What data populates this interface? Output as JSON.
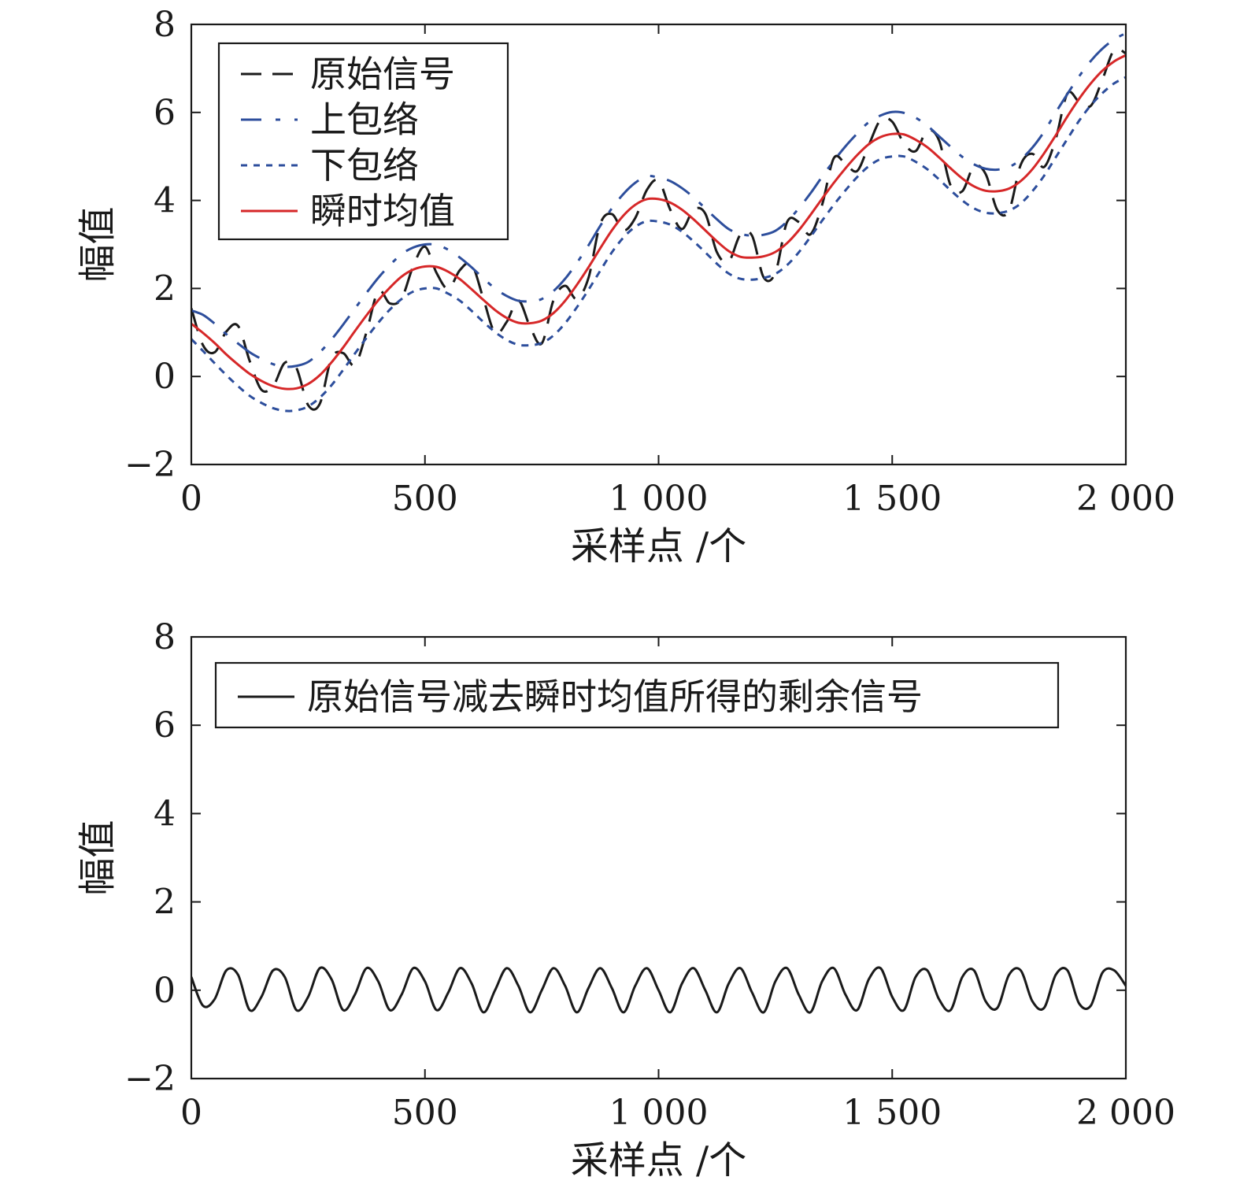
{
  "chart_data": [
    {
      "type": "line",
      "xlabel": "采样点 /个",
      "ylabel": "幅值",
      "xlim": [
        0,
        2000
      ],
      "ylim": [
        -2,
        8
      ],
      "xticks": [
        0,
        500,
        1000,
        1500,
        2000
      ],
      "xtick_labels": [
        "0",
        "500",
        "1 000",
        "1 500",
        "2 000"
      ],
      "yticks": [
        -2,
        0,
        2,
        4,
        6,
        8
      ],
      "ytick_labels": [
        "−2",
        "0",
        "2",
        "4",
        "6",
        "8"
      ],
      "grid": false,
      "legend_position": "top-left",
      "series": [
        {
          "name": "原始信号",
          "color": "#1a1a1a",
          "style": "dashed-long",
          "x": [
            0,
            25,
            50,
            75,
            100,
            125,
            150,
            175,
            200,
            225,
            250,
            275,
            300,
            325,
            350,
            375,
            400,
            425,
            450,
            475,
            500,
            525,
            550,
            575,
            600,
            625,
            650,
            675,
            700,
            725,
            750,
            775,
            800,
            825,
            850,
            875,
            900,
            925,
            950,
            975,
            1000,
            1025,
            1050,
            1075,
            1100,
            1125,
            1150,
            1175,
            1200,
            1225,
            1250,
            1275,
            1300,
            1325,
            1350,
            1375,
            1400,
            1425,
            1450,
            1475,
            1500,
            1525,
            1550,
            1575,
            1600,
            1625,
            1650,
            1675,
            1700,
            1725,
            1750,
            1775,
            1800,
            1825,
            1850,
            1875,
            1900,
            1925,
            1950,
            1975,
            2000
          ],
          "y": [
            1.55,
            0.71,
            0.55,
            1.02,
            1.15,
            0.35,
            -0.3,
            -0.22,
            0.31,
            0.19,
            -0.65,
            -0.62,
            0.42,
            0.53,
            0.26,
            1.01,
            1.94,
            1.66,
            1.77,
            2.51,
            2.95,
            2.35,
            1.99,
            2.42,
            2.55,
            1.77,
            0.99,
            1.24,
            1.73,
            1.13,
            0.75,
            1.73,
            2.06,
            1.76,
            2.24,
            3.46,
            3.69,
            3.32,
            3.6,
            4.24,
            4.45,
            3.79,
            3.35,
            3.79,
            3.7,
            2.82,
            2.61,
            3.22,
            3.2,
            2.25,
            2.36,
            3.51,
            3.51,
            3.23,
            3.9,
            4.96,
            4.83,
            4.67,
            5.26,
            5.83,
            5.79,
            5.3,
            5.12,
            5.59,
            5.37,
            4.34,
            4.21,
            4.78,
            4.6,
            3.78,
            3.77,
            4.81,
            5.06,
            4.76,
            5.4,
            6.43,
            6.24,
            6.15,
            6.75,
            7.42,
            7.34
          ]
        },
        {
          "name": "上包络",
          "color": "#2d4e9c",
          "style": "dash-dot",
          "x": [
            0,
            25,
            50,
            75,
            100,
            125,
            150,
            175,
            200,
            225,
            250,
            275,
            300,
            325,
            350,
            375,
            400,
            425,
            450,
            475,
            500,
            525,
            550,
            575,
            600,
            625,
            650,
            675,
            700,
            725,
            750,
            775,
            800,
            825,
            850,
            875,
            900,
            925,
            950,
            975,
            1000,
            1025,
            1050,
            1075,
            1100,
            1125,
            1150,
            1175,
            1200,
            1225,
            1250,
            1275,
            1300,
            1325,
            1350,
            1375,
            1400,
            1425,
            1450,
            1475,
            1500,
            1525,
            1550,
            1575,
            1600,
            1625,
            1650,
            1675,
            1700,
            1725,
            1750,
            1775,
            1800,
            1825,
            1850,
            1875,
            1900,
            1925,
            1950,
            1975,
            2000
          ],
          "y": [
            1.5,
            1.4,
            1.2,
            0.96,
            0.75,
            0.55,
            0.4,
            0.28,
            0.22,
            0.24,
            0.33,
            0.55,
            0.84,
            1.18,
            1.54,
            1.9,
            2.24,
            2.53,
            2.78,
            2.93,
            3.0,
            2.99,
            2.88,
            2.7,
            2.48,
            2.23,
            2.0,
            1.83,
            1.72,
            1.71,
            1.76,
            1.94,
            2.22,
            2.58,
            2.98,
            3.42,
            3.82,
            4.15,
            4.4,
            4.55,
            4.52,
            4.44,
            4.28,
            4.07,
            3.82,
            3.57,
            3.35,
            3.24,
            3.2,
            3.22,
            3.31,
            3.52,
            3.82,
            4.16,
            4.54,
            4.9,
            5.23,
            5.52,
            5.78,
            5.93,
            6.01,
            5.99,
            5.88,
            5.7,
            5.46,
            5.22,
            4.99,
            4.82,
            4.72,
            4.7,
            4.76,
            4.93,
            5.2,
            5.56,
            6.0,
            6.42,
            6.82,
            7.17,
            7.45,
            7.66,
            7.8
          ]
        },
        {
          "name": "下包络",
          "color": "#2d4e9c",
          "style": "dotted",
          "x": [
            0,
            25,
            50,
            75,
            100,
            125,
            150,
            175,
            200,
            225,
            250,
            275,
            300,
            325,
            350,
            375,
            400,
            425,
            450,
            475,
            500,
            525,
            550,
            575,
            600,
            625,
            650,
            675,
            700,
            725,
            750,
            775,
            800,
            825,
            850,
            875,
            900,
            925,
            950,
            975,
            1000,
            1025,
            1050,
            1075,
            1100,
            1125,
            1150,
            1175,
            1200,
            1225,
            1250,
            1275,
            1300,
            1325,
            1350,
            1375,
            1400,
            1425,
            1450,
            1475,
            1500,
            1525,
            1550,
            1575,
            1600,
            1625,
            1650,
            1675,
            1700,
            1725,
            1750,
            1775,
            1800,
            1825,
            1850,
            1875,
            1900,
            1925,
            1950,
            1975,
            2000
          ],
          "y": [
            0.85,
            0.58,
            0.3,
            0.03,
            -0.22,
            -0.44,
            -0.6,
            -0.72,
            -0.78,
            -0.77,
            -0.68,
            -0.48,
            -0.2,
            0.15,
            0.52,
            0.88,
            1.22,
            1.52,
            1.76,
            1.93,
            2.0,
            2.0,
            1.88,
            1.72,
            1.49,
            1.24,
            1.01,
            0.83,
            0.72,
            0.71,
            0.76,
            0.93,
            1.21,
            1.57,
            1.97,
            2.4,
            2.82,
            3.16,
            3.4,
            3.53,
            3.52,
            3.45,
            3.29,
            3.07,
            2.82,
            2.56,
            2.34,
            2.22,
            2.2,
            2.24,
            2.33,
            2.53,
            2.82,
            3.17,
            3.54,
            3.9,
            4.23,
            4.53,
            4.78,
            4.94,
            5.0,
            5.0,
            4.88,
            4.71,
            4.48,
            4.23,
            4.0,
            3.82,
            3.72,
            3.71,
            3.77,
            3.93,
            4.21,
            4.56,
            4.98,
            5.4,
            5.81,
            6.16,
            6.44,
            6.66,
            6.8
          ]
        },
        {
          "name": "瞬时均值",
          "color": "#d62728",
          "style": "solid",
          "x": [
            0,
            25,
            50,
            75,
            100,
            125,
            150,
            175,
            200,
            225,
            250,
            275,
            300,
            325,
            350,
            375,
            400,
            425,
            450,
            475,
            500,
            525,
            550,
            575,
            600,
            625,
            650,
            675,
            700,
            725,
            750,
            775,
            800,
            825,
            850,
            875,
            900,
            925,
            950,
            975,
            1000,
            1025,
            1050,
            1075,
            1100,
            1125,
            1150,
            1175,
            1200,
            1225,
            1250,
            1275,
            1300,
            1325,
            1350,
            1375,
            1400,
            1425,
            1450,
            1475,
            1500,
            1525,
            1550,
            1575,
            1600,
            1625,
            1650,
            1675,
            1700,
            1725,
            1750,
            1775,
            1800,
            1825,
            1850,
            1875,
            1900,
            1925,
            1950,
            1975,
            2000
          ],
          "y": [
            1.2,
            0.99,
            0.76,
            0.5,
            0.27,
            0.06,
            -0.1,
            -0.22,
            -0.28,
            -0.27,
            -0.17,
            0.03,
            0.32,
            0.66,
            1.03,
            1.39,
            1.73,
            2.02,
            2.27,
            2.43,
            2.5,
            2.49,
            2.38,
            2.21,
            1.98,
            1.74,
            1.51,
            1.33,
            1.22,
            1.21,
            1.27,
            1.44,
            1.72,
            2.08,
            2.48,
            2.91,
            3.32,
            3.66,
            3.9,
            4.03,
            4.03,
            3.95,
            3.79,
            3.57,
            3.32,
            3.07,
            2.85,
            2.72,
            2.7,
            2.73,
            2.83,
            3.03,
            3.32,
            3.67,
            4.04,
            4.4,
            4.73,
            5.03,
            5.28,
            5.44,
            5.51,
            5.5,
            5.38,
            5.21,
            4.98,
            4.73,
            4.5,
            4.32,
            4.22,
            4.21,
            4.27,
            4.44,
            4.71,
            5.07,
            5.48,
            5.91,
            6.31,
            6.66,
            6.95,
            7.16,
            7.3
          ]
        }
      ]
    },
    {
      "type": "line",
      "xlabel": "采样点 /个",
      "ylabel": "幅值",
      "xlim": [
        0,
        2000
      ],
      "ylim": [
        -2,
        8
      ],
      "xticks": [
        0,
        500,
        1000,
        1500,
        2000
      ],
      "xtick_labels": [
        "0",
        "500",
        "1 000",
        "1 500",
        "2 000"
      ],
      "yticks": [
        -2,
        0,
        2,
        4,
        6,
        8
      ],
      "ytick_labels": [
        "−2",
        "0",
        "2",
        "4",
        "6",
        "8"
      ],
      "grid": false,
      "legend_position": "top-left",
      "series": [
        {
          "name": "原始信号减去瞬时均值所得的剩余信号",
          "color": "#1a1a1a",
          "style": "solid",
          "x": [
            0,
            25,
            50,
            75,
            100,
            125,
            150,
            175,
            200,
            225,
            250,
            275,
            300,
            325,
            350,
            375,
            400,
            425,
            450,
            475,
            500,
            525,
            550,
            575,
            600,
            625,
            650,
            675,
            700,
            725,
            750,
            775,
            800,
            825,
            850,
            875,
            900,
            925,
            950,
            975,
            1000,
            1025,
            1050,
            1075,
            1100,
            1125,
            1150,
            1175,
            1200,
            1225,
            1250,
            1275,
            1300,
            1325,
            1350,
            1375,
            1400,
            1425,
            1450,
            1475,
            1500,
            1525,
            1550,
            1575,
            1600,
            1625,
            1650,
            1675,
            1700,
            1725,
            1750,
            1775,
            1800,
            1825,
            1850,
            1875,
            1900,
            1925,
            1950,
            1975,
            2000
          ],
          "y": [
            0.3,
            -0.35,
            -0.2,
            0.45,
            0.35,
            -0.45,
            -0.15,
            0.45,
            0.3,
            -0.45,
            -0.15,
            0.5,
            0.25,
            -0.45,
            -0.1,
            0.5,
            0.2,
            -0.45,
            -0.1,
            0.5,
            0.2,
            -0.45,
            -0.05,
            0.5,
            0.15,
            -0.5,
            0.0,
            0.5,
            0.1,
            -0.5,
            0.0,
            0.5,
            0.1,
            -0.5,
            0.05,
            0.5,
            0.05,
            -0.5,
            0.1,
            0.5,
            0.0,
            -0.5,
            0.15,
            0.5,
            0.0,
            -0.5,
            0.15,
            0.5,
            -0.05,
            -0.5,
            0.2,
            0.5,
            -0.1,
            -0.5,
            0.2,
            0.5,
            -0.1,
            -0.45,
            0.25,
            0.5,
            -0.15,
            -0.45,
            0.3,
            0.45,
            -0.2,
            -0.45,
            0.3,
            0.45,
            -0.25,
            -0.4,
            0.35,
            0.45,
            -0.25,
            -0.4,
            0.35,
            0.45,
            -0.3,
            -0.35,
            0.4,
            0.45,
            0.1
          ]
        }
      ]
    }
  ]
}
